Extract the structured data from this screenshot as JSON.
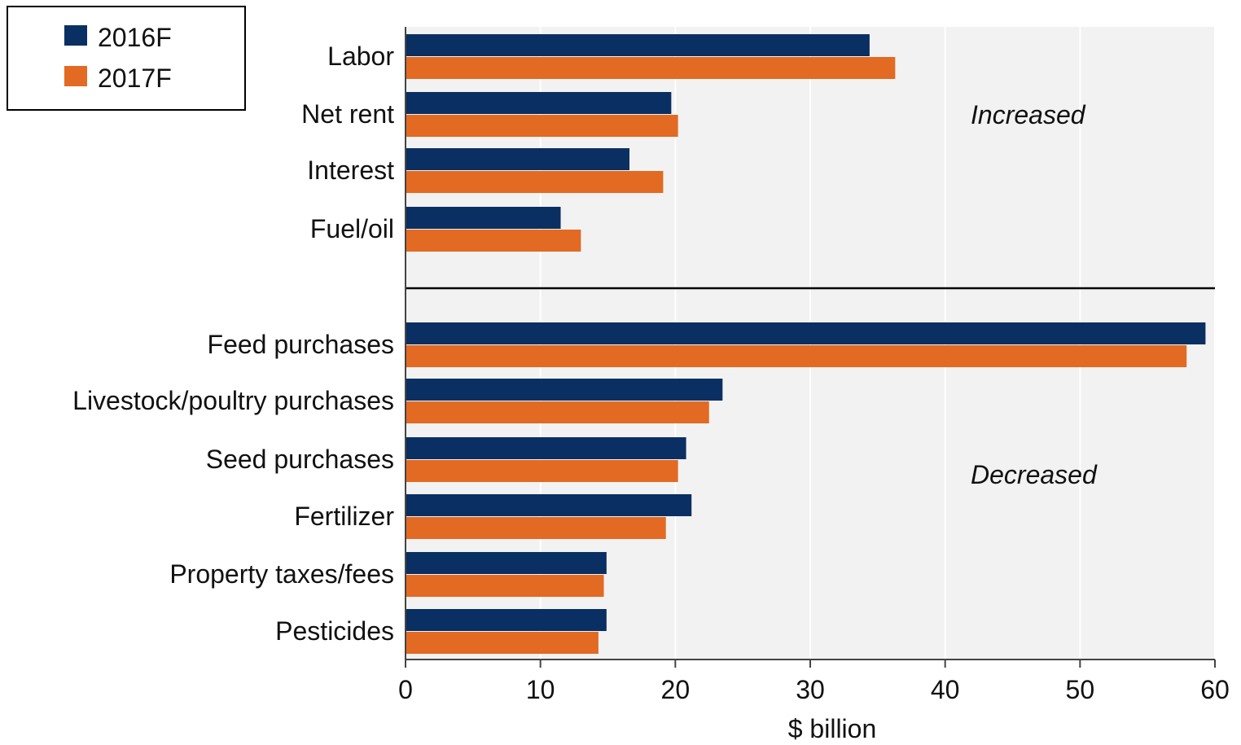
{
  "chart_data": {
    "type": "bar",
    "orientation": "horizontal",
    "categories": [
      "Labor",
      "Net rent",
      "Interest",
      "Fuel/oil",
      "Feed purchases",
      "Livestock/poultry purchases",
      "Seed purchases",
      "Fertilizer",
      "Property taxes/fees",
      "Pesticides"
    ],
    "series": [
      {
        "name": "2016F",
        "color": "#0a2f62",
        "values": [
          34.4,
          19.7,
          16.6,
          11.5,
          59.3,
          23.5,
          20.8,
          21.2,
          14.9,
          14.9
        ]
      },
      {
        "name": "2017F",
        "color": "#e26a22",
        "values": [
          36.3,
          20.2,
          19.1,
          13.0,
          57.9,
          22.5,
          20.2,
          19.3,
          14.7,
          14.3
        ]
      }
    ],
    "groups": [
      {
        "label": "Increased",
        "start": 0,
        "end": 3
      },
      {
        "label": "Decreased",
        "start": 4,
        "end": 9
      }
    ],
    "xlabel": "$ billion",
    "xlim": [
      0,
      60
    ],
    "xticks": [
      0,
      10,
      20,
      30,
      40,
      50,
      60
    ],
    "grid": "vertical",
    "legend_position": "top-left",
    "background_color": "#f2f2f2"
  }
}
